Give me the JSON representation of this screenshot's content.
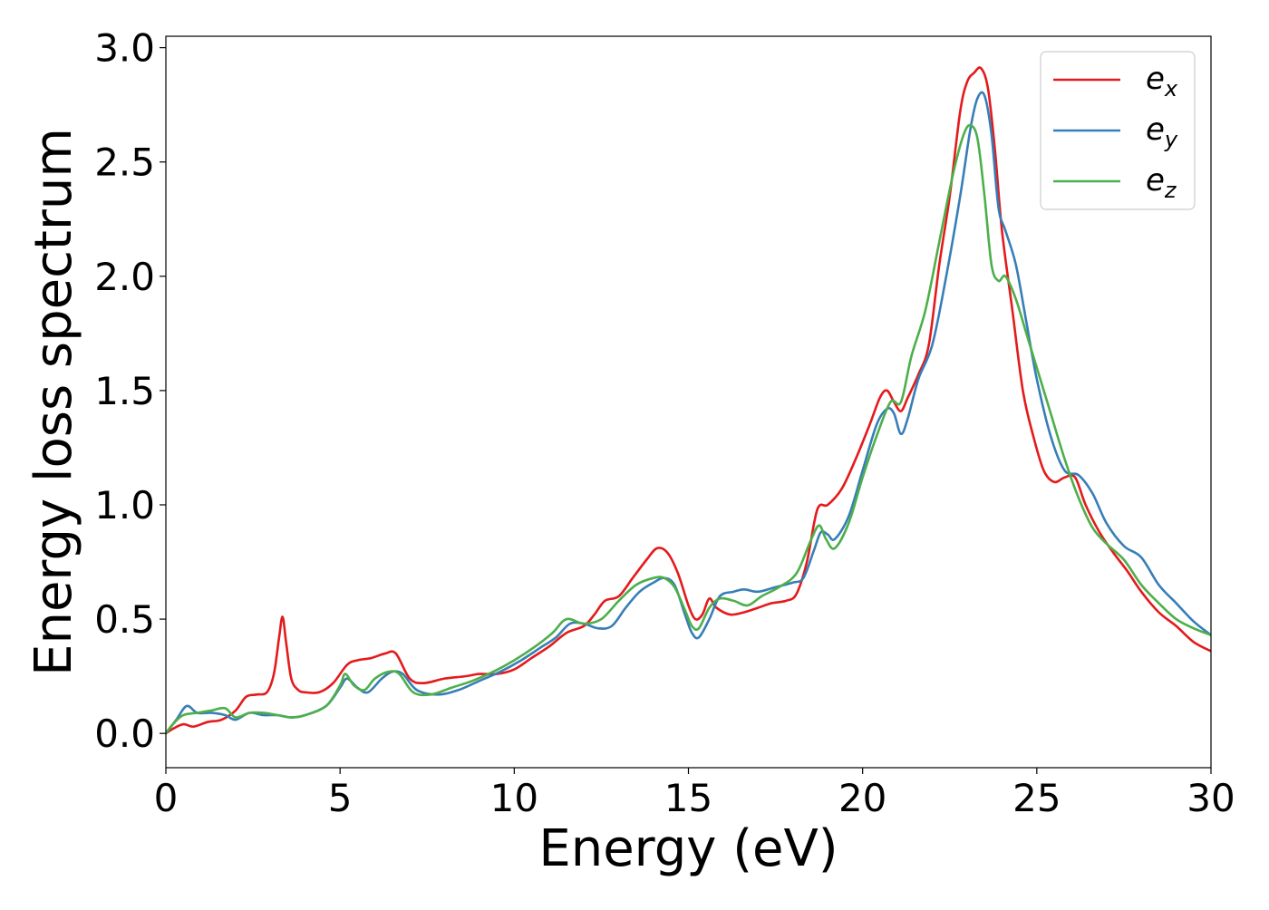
{
  "chart_data": {
    "type": "line",
    "title": "",
    "xlabel": "Energy (eV)",
    "ylabel": "Energy loss spectrum",
    "xlim": [
      0,
      30
    ],
    "ylim": [
      -0.15,
      3.05
    ],
    "xticks": [
      0,
      5,
      10,
      15,
      20,
      25,
      30
    ],
    "xtick_labels": [
      "0",
      "5",
      "10",
      "15",
      "20",
      "25",
      "30"
    ],
    "yticks": [
      0.0,
      0.5,
      1.0,
      1.5,
      2.0,
      2.5,
      3.0
    ],
    "ytick_labels": [
      "0.0",
      "0.5",
      "1.0",
      "1.5",
      "2.0",
      "2.5",
      "3.0"
    ],
    "grid": false,
    "legend_position": "top-right",
    "series": [
      {
        "name": "e_x",
        "legend_base": "e",
        "legend_sub": "x",
        "color": "#e41a1c",
        "x": [
          0,
          0.2,
          0.5,
          0.8,
          1.2,
          1.6,
          2.0,
          2.3,
          2.6,
          2.9,
          3.1,
          3.25,
          3.35,
          3.45,
          3.6,
          3.8,
          4.0,
          4.4,
          4.8,
          5.2,
          5.5,
          5.9,
          6.3,
          6.6,
          7.0,
          7.4,
          8.0,
          8.6,
          9.0,
          9.5,
          10.0,
          10.5,
          11.0,
          11.5,
          12.0,
          12.3,
          12.6,
          13.0,
          13.4,
          13.8,
          14.1,
          14.4,
          14.7,
          15.0,
          15.2,
          15.4,
          15.6,
          15.8,
          16.2,
          16.6,
          17.0,
          17.4,
          17.8,
          18.1,
          18.4,
          18.7,
          19.0,
          19.4,
          19.8,
          20.2,
          20.5,
          20.7,
          20.9,
          21.1,
          21.3,
          21.6,
          21.9,
          22.2,
          22.5,
          22.8,
          23.0,
          23.2,
          23.4,
          23.6,
          23.8,
          24.0,
          24.3,
          24.6,
          24.9,
          25.2,
          25.5,
          25.8,
          26.1,
          26.4,
          26.8,
          27.2,
          27.6,
          28.0,
          28.5,
          29.0,
          29.5,
          30.0
        ],
        "y": [
          0.0,
          0.02,
          0.04,
          0.03,
          0.05,
          0.06,
          0.1,
          0.16,
          0.17,
          0.18,
          0.26,
          0.42,
          0.51,
          0.4,
          0.24,
          0.19,
          0.18,
          0.18,
          0.22,
          0.3,
          0.32,
          0.33,
          0.35,
          0.35,
          0.24,
          0.22,
          0.24,
          0.25,
          0.26,
          0.26,
          0.28,
          0.33,
          0.38,
          0.44,
          0.47,
          0.52,
          0.58,
          0.6,
          0.68,
          0.76,
          0.81,
          0.79,
          0.7,
          0.56,
          0.5,
          0.52,
          0.59,
          0.55,
          0.52,
          0.53,
          0.55,
          0.57,
          0.58,
          0.61,
          0.75,
          0.98,
          1.0,
          1.07,
          1.2,
          1.35,
          1.47,
          1.5,
          1.45,
          1.41,
          1.47,
          1.57,
          1.7,
          2.05,
          2.35,
          2.72,
          2.85,
          2.89,
          2.91,
          2.82,
          2.55,
          2.2,
          1.85,
          1.5,
          1.3,
          1.15,
          1.1,
          1.12,
          1.12,
          1.0,
          0.88,
          0.79,
          0.71,
          0.62,
          0.53,
          0.47,
          0.4,
          0.36
        ]
      },
      {
        "name": "e_y",
        "legend_base": "e",
        "legend_sub": "y",
        "color": "#377eb8",
        "x": [
          0,
          0.3,
          0.6,
          0.9,
          1.3,
          1.7,
          2.0,
          2.4,
          2.8,
          3.2,
          3.6,
          4.0,
          4.6,
          5.0,
          5.2,
          5.5,
          5.8,
          6.2,
          6.5,
          6.8,
          7.2,
          7.8,
          8.4,
          9.0,
          9.6,
          10.2,
          10.8,
          11.2,
          11.6,
          12.0,
          12.4,
          12.8,
          13.2,
          13.6,
          14.0,
          14.3,
          14.6,
          14.9,
          15.1,
          15.3,
          15.6,
          15.9,
          16.3,
          16.6,
          17.0,
          17.5,
          18.0,
          18.3,
          18.6,
          18.8,
          19.0,
          19.2,
          19.6,
          20.0,
          20.4,
          20.7,
          20.9,
          21.1,
          21.3,
          21.6,
          22.0,
          22.4,
          22.8,
          23.1,
          23.3,
          23.5,
          23.7,
          23.9,
          24.1,
          24.4,
          24.7,
          25.0,
          25.4,
          25.8,
          26.2,
          26.6,
          27.0,
          27.5,
          28.0,
          28.5,
          29.0,
          29.5,
          30.0
        ],
        "y": [
          0.0,
          0.06,
          0.12,
          0.09,
          0.09,
          0.08,
          0.06,
          0.09,
          0.08,
          0.08,
          0.07,
          0.08,
          0.12,
          0.2,
          0.24,
          0.2,
          0.18,
          0.24,
          0.27,
          0.26,
          0.19,
          0.17,
          0.19,
          0.23,
          0.27,
          0.32,
          0.38,
          0.42,
          0.48,
          0.48,
          0.46,
          0.47,
          0.55,
          0.62,
          0.66,
          0.68,
          0.65,
          0.52,
          0.44,
          0.42,
          0.5,
          0.6,
          0.62,
          0.63,
          0.62,
          0.64,
          0.66,
          0.68,
          0.8,
          0.88,
          0.87,
          0.85,
          0.95,
          1.15,
          1.35,
          1.42,
          1.4,
          1.31,
          1.38,
          1.55,
          1.7,
          2.0,
          2.35,
          2.65,
          2.78,
          2.79,
          2.62,
          2.3,
          2.2,
          2.05,
          1.8,
          1.55,
          1.3,
          1.15,
          1.13,
          1.05,
          0.92,
          0.82,
          0.77,
          0.65,
          0.57,
          0.49,
          0.43
        ]
      },
      {
        "name": "e_z",
        "legend_base": "e",
        "legend_sub": "z",
        "color": "#4daf4a",
        "x": [
          0,
          0.2,
          0.5,
          0.9,
          1.3,
          1.7,
          2.0,
          2.4,
          2.8,
          3.2,
          3.6,
          4.0,
          4.6,
          5.0,
          5.15,
          5.4,
          5.7,
          6.0,
          6.4,
          6.7,
          7.1,
          7.6,
          8.2,
          8.8,
          9.4,
          10.0,
          10.6,
          11.1,
          11.5,
          12.0,
          12.5,
          13.0,
          13.5,
          14.0,
          14.3,
          14.6,
          14.9,
          15.1,
          15.3,
          15.6,
          15.9,
          16.3,
          16.7,
          17.1,
          17.6,
          18.1,
          18.5,
          18.75,
          18.95,
          19.2,
          19.6,
          20.0,
          20.4,
          20.8,
          21.1,
          21.4,
          21.8,
          22.2,
          22.6,
          22.9,
          23.1,
          23.3,
          23.5,
          23.7,
          23.9,
          24.1,
          24.4,
          24.7,
          25.0,
          25.4,
          25.8,
          26.2,
          26.6,
          27.0,
          27.5,
          28.0,
          28.5,
          29.0,
          29.5,
          30.0
        ],
        "y": [
          0.0,
          0.04,
          0.08,
          0.09,
          0.1,
          0.11,
          0.07,
          0.09,
          0.09,
          0.08,
          0.07,
          0.08,
          0.12,
          0.21,
          0.26,
          0.21,
          0.19,
          0.24,
          0.27,
          0.26,
          0.18,
          0.17,
          0.2,
          0.23,
          0.27,
          0.32,
          0.38,
          0.44,
          0.5,
          0.48,
          0.5,
          0.58,
          0.65,
          0.68,
          0.68,
          0.64,
          0.54,
          0.47,
          0.46,
          0.55,
          0.59,
          0.58,
          0.56,
          0.6,
          0.64,
          0.7,
          0.84,
          0.91,
          0.85,
          0.81,
          0.92,
          1.12,
          1.3,
          1.45,
          1.45,
          1.65,
          1.85,
          2.15,
          2.45,
          2.62,
          2.66,
          2.6,
          2.35,
          2.05,
          1.98,
          2.0,
          1.9,
          1.75,
          1.6,
          1.4,
          1.2,
          1.03,
          0.9,
          0.83,
          0.76,
          0.65,
          0.57,
          0.5,
          0.46,
          0.43
        ]
      }
    ]
  }
}
